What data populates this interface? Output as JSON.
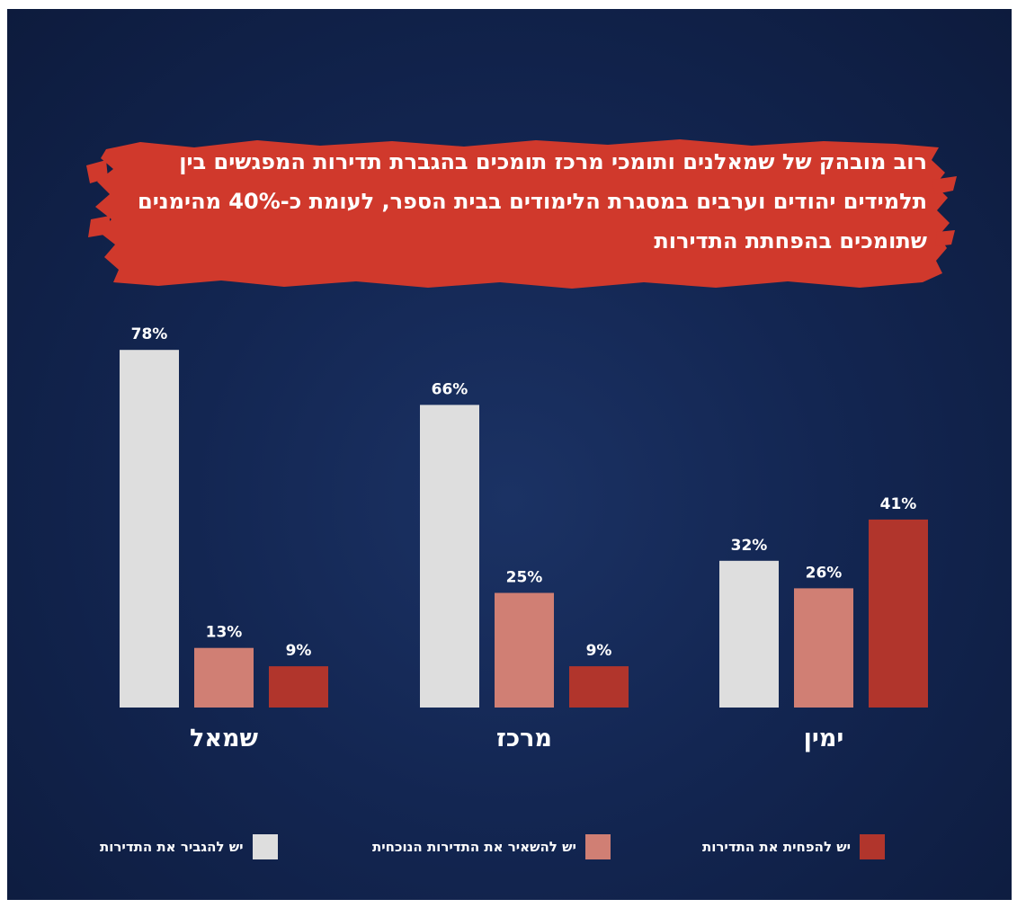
{
  "title": "רוב מובהק של שמאלנים ותומכי מרכז תומכים בהגברת תדירות המפגשים בין תלמידים יהודים וערבים במסגרת הלימודים בבית הספר, לעומת כ-40% מהימנים שתומכים בהפחתת התדירות",
  "colors": {
    "background": "#132652",
    "banner": "#d0392c",
    "increase": "#dedede",
    "keep": "#d07f74",
    "reduce": "#b1352c"
  },
  "chart_data": {
    "type": "bar",
    "categories": [
      "שמאל",
      "מרכז",
      "ימין"
    ],
    "series": [
      {
        "name": "יש להגביר את התדירות",
        "values": [
          78,
          66,
          32
        ],
        "labels": [
          "78%",
          "66%",
          "32%"
        ],
        "color": "#dedede"
      },
      {
        "name": "יש להשאיר את התדירות הנוכחית",
        "values": [
          13,
          25,
          26
        ],
        "labels": [
          "13%",
          "25%",
          "26%"
        ],
        "color": "#d07f74"
      },
      {
        "name": "יש להפחית את התדירות",
        "values": [
          9,
          9,
          41
        ],
        "labels": [
          "9%",
          "9%",
          "41%"
        ],
        "color": "#b1352c"
      }
    ],
    "ylim": [
      0,
      100
    ],
    "grid": false,
    "legend": "bottom"
  }
}
